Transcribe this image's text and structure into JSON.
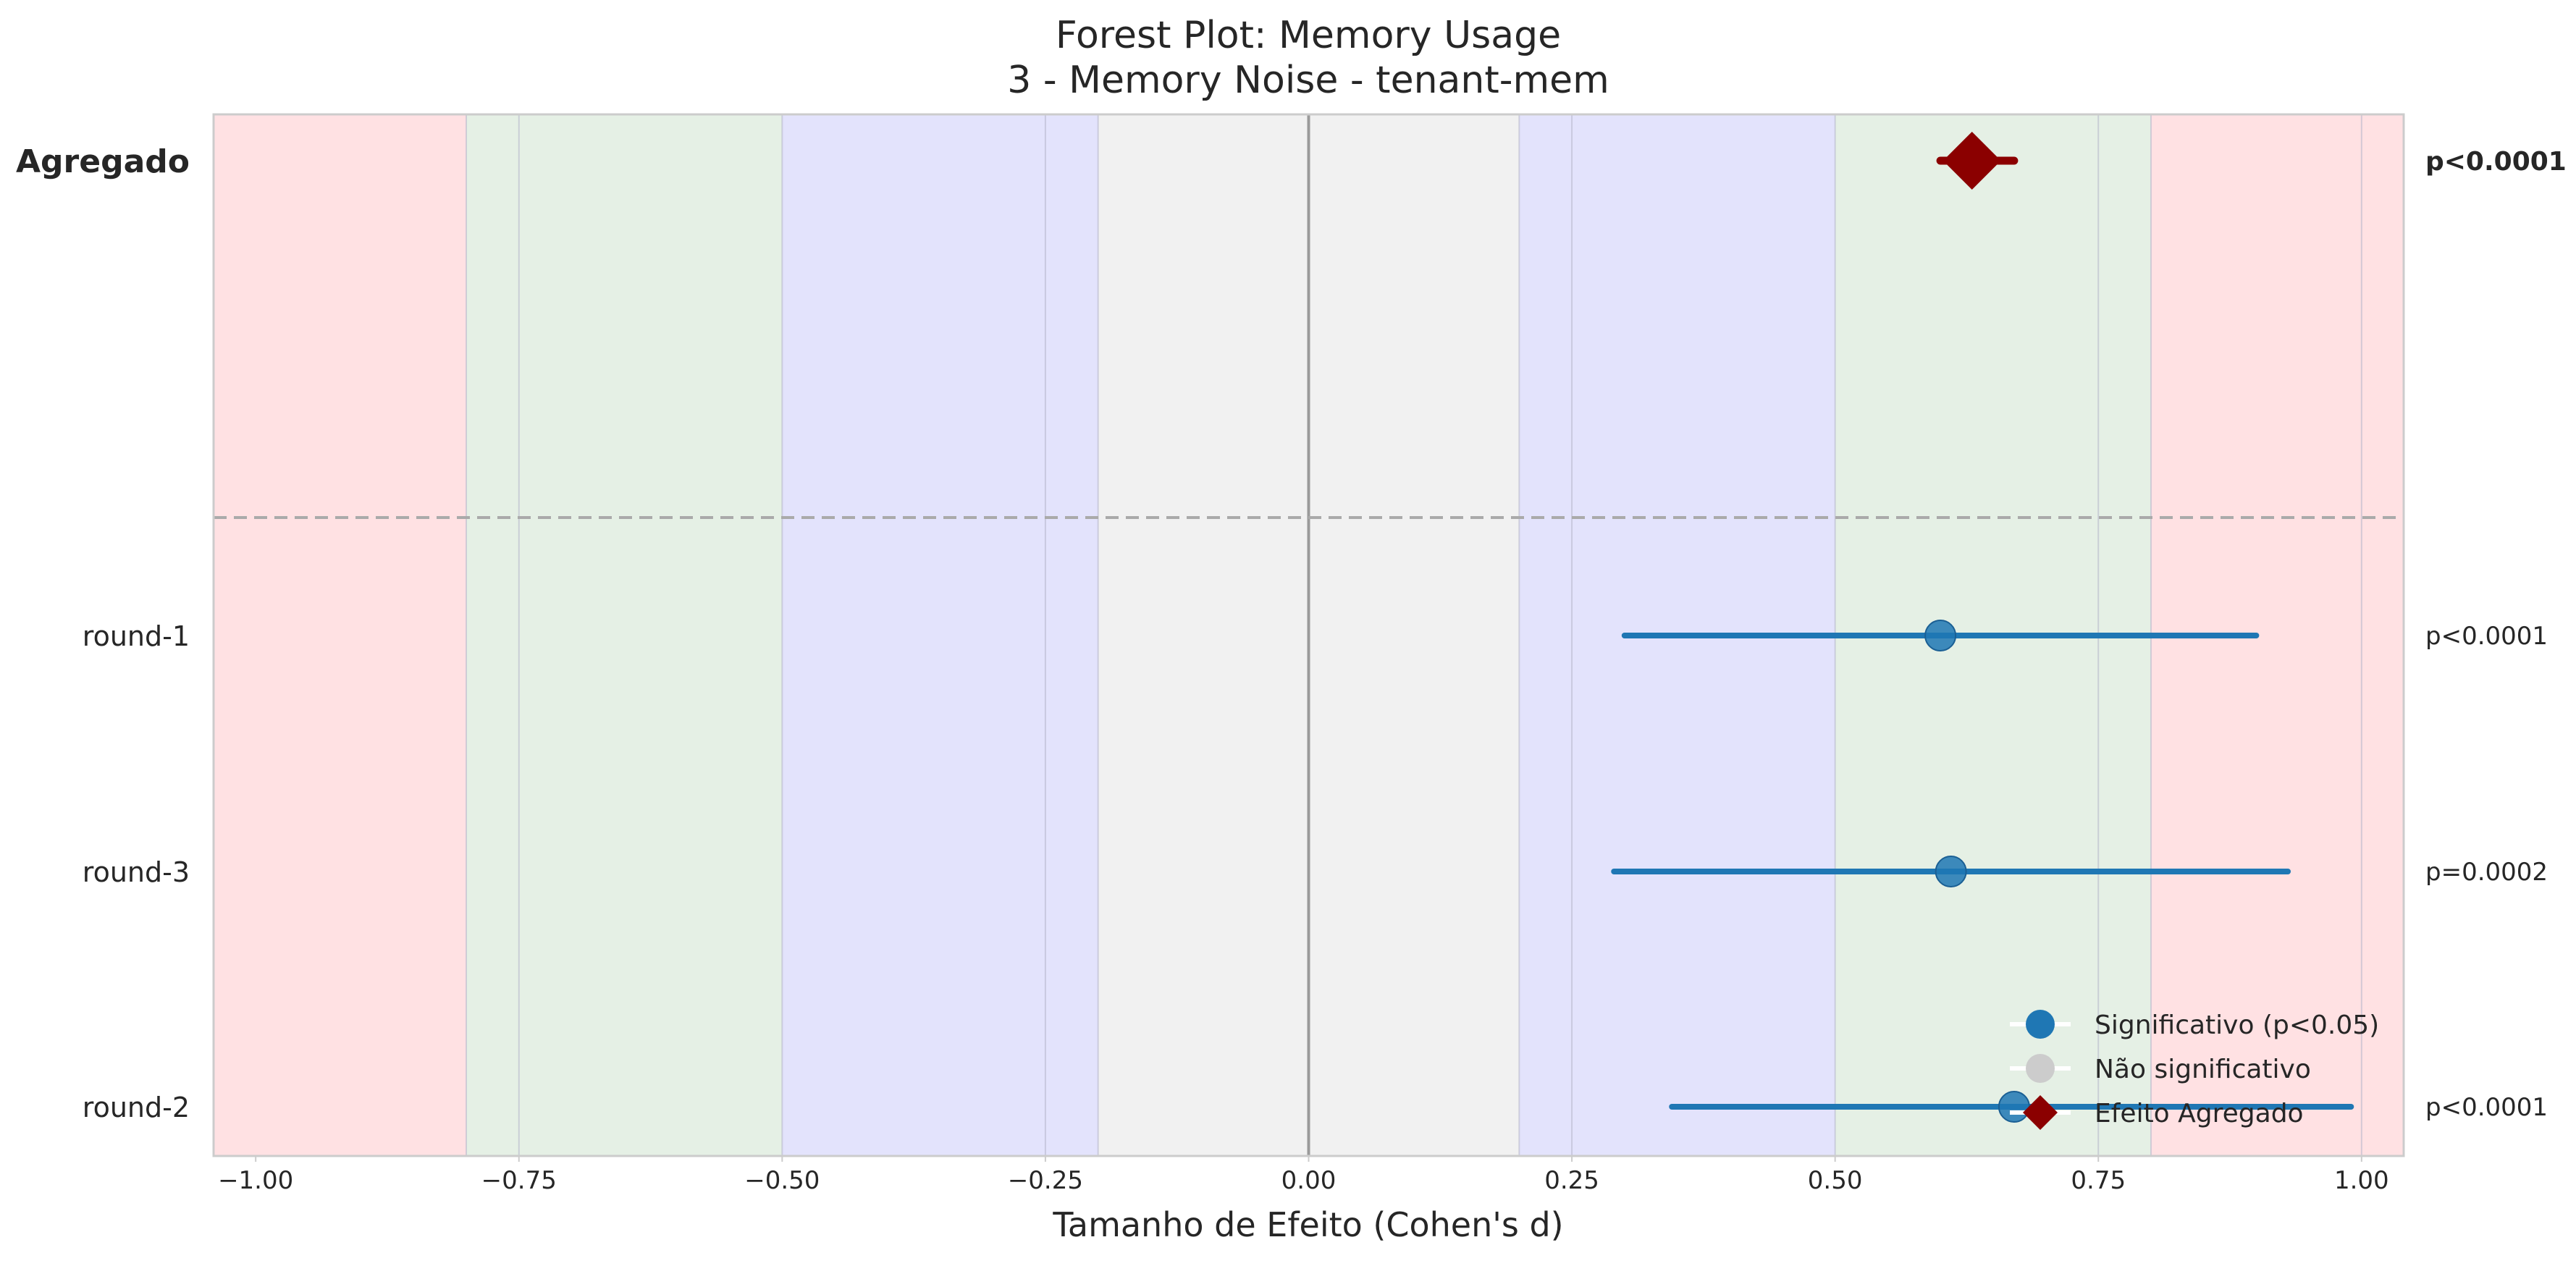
{
  "chart_data": {
    "type": "forest",
    "title_line1": "Forest Plot: Memory Usage",
    "title_line2": "3 - Memory Noise - tenant-mem",
    "xlabel": "Tamanho de Efeito (Cohen's d)",
    "xlim": [
      -1.04,
      1.04
    ],
    "xticks": [
      -1.0,
      -0.75,
      -0.5,
      -0.25,
      0.0,
      0.25,
      0.5,
      0.75,
      1.0
    ],
    "xtick_labels": [
      "−1.00",
      "−0.75",
      "−0.50",
      "−0.25",
      "0.00",
      "0.25",
      "0.50",
      "0.75",
      "1.00"
    ],
    "effect_bands": [
      {
        "from": -1.04,
        "to": -0.8,
        "color": "#ffe1e3"
      },
      {
        "from": -0.8,
        "to": -0.5,
        "color": "#e5f0e5"
      },
      {
        "from": -0.5,
        "to": -0.2,
        "color": "#e3e3fc"
      },
      {
        "from": -0.2,
        "to": 0.2,
        "color": "#f1f1f1"
      },
      {
        "from": 0.2,
        "to": 0.5,
        "color": "#e3e3fc"
      },
      {
        "from": 0.5,
        "to": 0.8,
        "color": "#e5f0e5"
      },
      {
        "from": 0.8,
        "to": 1.04,
        "color": "#ffe1e3"
      }
    ],
    "aggregate": {
      "label": "Agregado",
      "estimate": 0.63,
      "ci": [
        0.6,
        0.67
      ],
      "p_text": "p<0.0001",
      "color": "#8b0000"
    },
    "studies": [
      {
        "label": "round-1",
        "estimate": 0.6,
        "ci": [
          0.3,
          0.9
        ],
        "p_text": "p<0.0001",
        "significant": true
      },
      {
        "label": "round-3",
        "estimate": 0.61,
        "ci": [
          0.29,
          0.93
        ],
        "p_text": "p=0.0002",
        "significant": true
      },
      {
        "label": "round-2",
        "estimate": 0.67,
        "ci": [
          0.345,
          0.99
        ],
        "p_text": "p<0.0001",
        "significant": true
      }
    ],
    "legend": {
      "position": "lower-right",
      "entries": [
        {
          "label": "Significativo (p<0.05)",
          "marker": "circle",
          "color": "#1f77b4"
        },
        {
          "label": "Não significativo",
          "marker": "circle",
          "color": "#cccccc"
        },
        {
          "label": "Efeito Agregado",
          "marker": "diamond",
          "color": "#8b0000"
        }
      ]
    },
    "colors": {
      "significant": "#1f77b4",
      "non_significant": "#cccccc",
      "aggregate": "#8b0000"
    }
  }
}
